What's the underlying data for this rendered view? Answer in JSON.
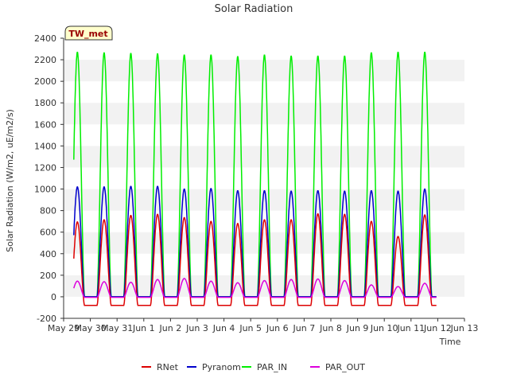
{
  "chart_data": {
    "type": "line",
    "title": "Solar Radiation",
    "xlabel": "Time",
    "ylabel": "Solar Radiation (W/m2, uE/m2/s)",
    "site_label": "TW_met",
    "ylim": [
      -200,
      2400
    ],
    "yticks": [
      -200,
      0,
      200,
      400,
      600,
      800,
      1000,
      1200,
      1400,
      1600,
      1800,
      2000,
      2200,
      2400
    ],
    "xlim": [
      0,
      15
    ],
    "xticks": [
      0,
      1,
      2,
      3,
      4,
      5,
      6,
      7,
      8,
      9,
      10,
      11,
      12,
      13,
      14,
      15
    ],
    "xticklabels": [
      "May 29",
      "May 30",
      "May 31",
      "Jun 1",
      "Jun 2",
      "Jun 3",
      "Jun 4",
      "Jun 5",
      "Jun 6",
      "Jun 7",
      "Jun 8",
      "Jun 9",
      "Jun 10",
      "Jun 11",
      "Jun 12",
      "Jun 13"
    ],
    "grid": "horizontal bands",
    "legend_placement": "bottom",
    "days": [
      "May 29",
      "May 30",
      "May 31",
      "Jun 1",
      "Jun 2",
      "Jun 3",
      "Jun 4",
      "Jun 5",
      "Jun 6",
      "Jun 7",
      "Jun 8",
      "Jun 9",
      "Jun 10",
      "Jun 11"
    ],
    "series": [
      {
        "name": "RNet",
        "color": "#dd0000",
        "daily_peak": [
          695,
          715,
          755,
          765,
          735,
          700,
          680,
          715,
          715,
          770,
          765,
          700,
          560,
          760
        ],
        "night_value": -80
      },
      {
        "name": "Pyranom",
        "color": "#0000cc",
        "daily_peak": [
          1020,
          1020,
          1025,
          1025,
          1000,
          1005,
          985,
          985,
          980,
          985,
          980,
          985,
          980,
          1000
        ],
        "night_value": 0
      },
      {
        "name": "PAR_IN",
        "color": "#00ee00",
        "daily_peak": [
          2270,
          2265,
          2260,
          2255,
          2245,
          2245,
          2230,
          2245,
          2235,
          2235,
          2235,
          2265,
          2270,
          2270
        ],
        "night_value": 0
      },
      {
        "name": "PAR_OUT",
        "color": "#dd00dd",
        "daily_peak": [
          145,
          140,
          135,
          160,
          170,
          145,
          130,
          150,
          160,
          165,
          150,
          110,
          95,
          125
        ],
        "night_value": -5
      }
    ]
  }
}
